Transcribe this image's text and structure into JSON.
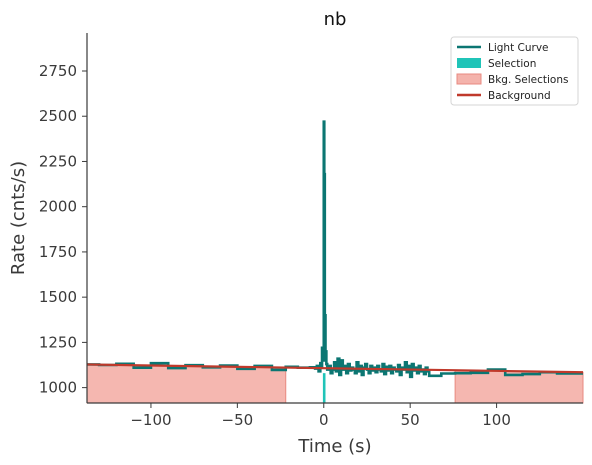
{
  "chart_data": {
    "type": "line",
    "title": "nb",
    "xlabel": "Time (s)",
    "ylabel": "Rate (cnts/s)",
    "xlim": [
      -137,
      150
    ],
    "ylim": [
      915,
      2960
    ],
    "xticks": [
      -100,
      -50,
      0,
      50,
      100
    ],
    "xtick_labels": [
      "−100",
      "−50",
      "0",
      "50",
      "100"
    ],
    "yticks": [
      1000,
      1250,
      1500,
      1750,
      2000,
      2250,
      2500,
      2750
    ],
    "ytick_labels": [
      "1000",
      "1250",
      "1500",
      "1750",
      "2000",
      "2250",
      "2500",
      "2750"
    ],
    "grid": false,
    "legend_position": "top-right",
    "legend": [
      {
        "label": "Light Curve",
        "kind": "line",
        "color": "#0b7672"
      },
      {
        "label": "Selection",
        "kind": "patch",
        "color": "#20c4b8"
      },
      {
        "label": "Bkg. Selections",
        "kind": "patch",
        "color": "#f4b3ac"
      },
      {
        "label": "Background",
        "kind": "line",
        "color": "#c0392b"
      }
    ],
    "background_fit": {
      "name": "Background",
      "x": [
        -137,
        150
      ],
      "y": [
        1128,
        1085
      ],
      "color": "#c0392b"
    },
    "bkg_selections": [
      {
        "x_start": -137,
        "x_end": -22,
        "color": "#f4b3ac"
      },
      {
        "x_start": 76,
        "x_end": 150,
        "color": "#f4b3ac"
      }
    ],
    "selection": {
      "x_start": -0.5,
      "x_end": 1.0,
      "y_low": 915,
      "y_high": 1080,
      "color": "#20c4b8"
    },
    "light_curve": {
      "name": "Light Curve",
      "color": "#0b7672",
      "x": [
        -137,
        -130,
        -120,
        -110,
        -100,
        -90,
        -80,
        -70,
        -60,
        -50,
        -40,
        -30,
        -22,
        -15,
        -8,
        -5,
        -4,
        -3,
        -2,
        -1.5,
        -1,
        -0.5,
        0,
        0.3,
        0.6,
        1,
        1.5,
        2,
        3,
        4,
        5,
        6,
        7,
        8,
        9,
        10,
        11,
        12,
        13,
        14,
        15,
        16,
        17,
        18,
        19,
        20,
        21,
        22,
        23,
        24,
        25,
        26,
        27,
        28,
        29,
        30,
        31,
        32,
        33,
        34,
        35,
        36,
        37,
        38,
        39,
        40,
        41,
        42,
        43,
        44,
        45,
        46,
        47,
        48,
        49,
        50,
        51,
        52,
        53,
        54,
        55,
        56,
        57,
        58,
        59,
        60,
        61,
        68,
        76,
        85,
        95,
        105,
        115,
        125,
        135,
        150
      ],
      "y": [
        1128,
        1125,
        1132,
        1110,
        1135,
        1108,
        1124,
        1112,
        1122,
        1104,
        1120,
        1098,
        1115,
        1110,
        1112,
        1105,
        1120,
        1090,
        1135,
        1110,
        1220,
        1150,
        2470,
        2180,
        1400,
        1200,
        1130,
        1100,
        1120,
        1080,
        1100,
        1140,
        1090,
        1160,
        1070,
        1150,
        1100,
        1120,
        1080,
        1130,
        1095,
        1110,
        1100,
        1080,
        1140,
        1090,
        1120,
        1070,
        1110,
        1130,
        1100,
        1080,
        1120,
        1095,
        1110,
        1085,
        1120,
        1100,
        1090,
        1130,
        1075,
        1115,
        1095,
        1120,
        1080,
        1110,
        1100,
        1090,
        1125,
        1070,
        1110,
        1100,
        1140,
        1085,
        1120,
        1060,
        1130,
        1095,
        1110,
        1080,
        1120,
        1090,
        1100,
        1075,
        1110,
        1090,
        1065,
        1078,
        1080,
        1082,
        1100,
        1070,
        1075,
        1085,
        1078,
        1078
      ]
    }
  }
}
